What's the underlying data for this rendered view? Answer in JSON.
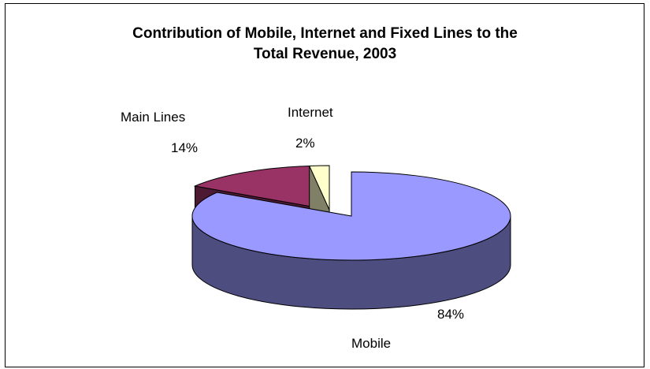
{
  "chart_data": {
    "type": "pie",
    "style": "3d-exploded",
    "title": "Contribution of Mobile, Internet and Fixed Lines to the Total Revenue, 2003",
    "title_lines": [
      "Contribution of Mobile, Internet and Fixed Lines to the",
      "Total Revenue, 2003"
    ],
    "slices": [
      {
        "name": "Mobile",
        "value": 84,
        "label": "84%",
        "color": "#9999FF",
        "side_color": "#4D4D80"
      },
      {
        "name": "Main Lines",
        "value": 14,
        "label": "14%",
        "color": "#993366",
        "side_color": "#4D1A33"
      },
      {
        "name": "Internet",
        "value": 2,
        "label": "2%",
        "color": "#FFFFCC",
        "side_color": "#808066"
      }
    ],
    "legend": "none",
    "data_labels": "category-and-percent"
  }
}
